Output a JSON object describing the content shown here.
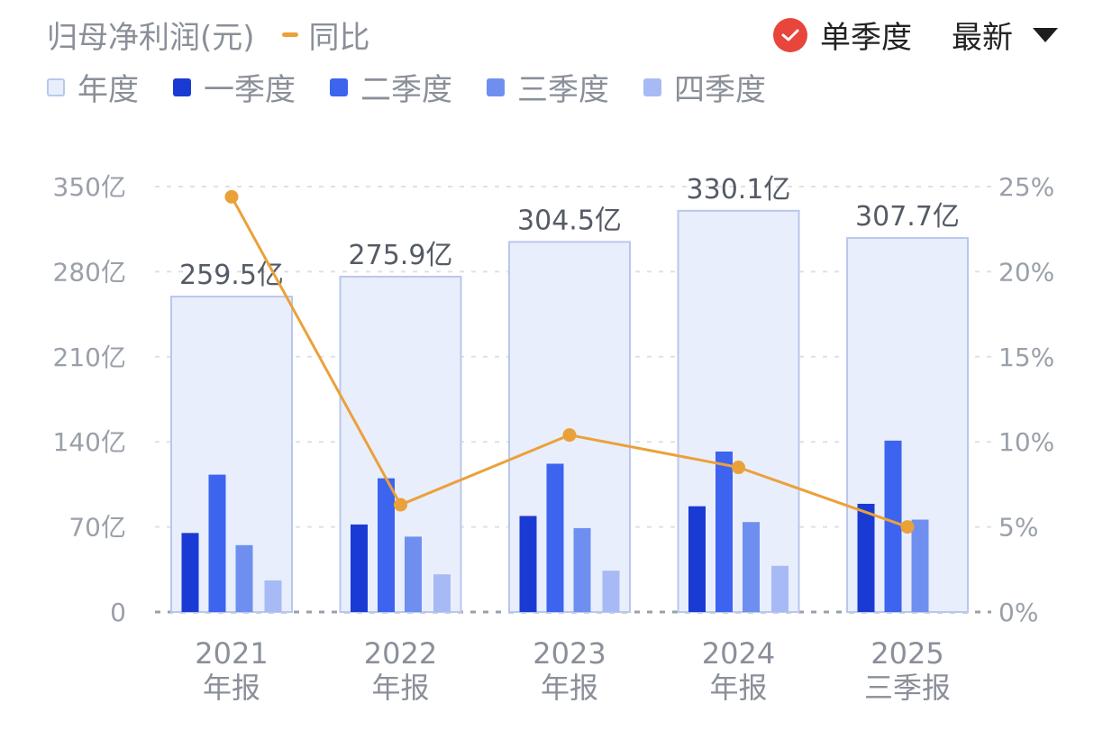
{
  "header": {
    "title": "归母净利润(元)",
    "line_legend_label": "同比",
    "toggle_label": "单季度",
    "period_label": "最新"
  },
  "colors": {
    "annual_fill": "#e9eefc",
    "annual_stroke": "#b9c7ef",
    "q1": "#1a3bd3",
    "q2": "#3d64ee",
    "q3": "#6f8ff0",
    "q4": "#a7baf6",
    "line": "#eba13a",
    "check": "#e8453c"
  },
  "chart_data": {
    "type": "bar",
    "categories": [
      [
        "2021",
        "年报"
      ],
      [
        "2022",
        "年报"
      ],
      [
        "2023",
        "年报"
      ],
      [
        "2024",
        "年报"
      ],
      [
        "2025",
        "三季报"
      ]
    ],
    "legend": [
      "年度",
      "一季度",
      "二季度",
      "三季度",
      "四季度"
    ],
    "series": [
      {
        "name": "年度",
        "values": [
          259.5,
          275.9,
          304.5,
          330.1,
          307.7
        ],
        "value_labels": [
          "259.5亿",
          "275.9亿",
          "304.5亿",
          "330.1亿",
          "307.7亿"
        ]
      },
      {
        "name": "一季度",
        "values": [
          65,
          72,
          79,
          87,
          89
        ]
      },
      {
        "name": "二季度",
        "values": [
          113,
          110,
          122,
          132,
          141
        ]
      },
      {
        "name": "三季度",
        "values": [
          55,
          62,
          69,
          74,
          76
        ]
      },
      {
        "name": "四季度",
        "values": [
          26,
          31,
          34,
          38,
          null
        ]
      }
    ],
    "line_series": {
      "name": "同比",
      "values": [
        24.4,
        6.3,
        10.4,
        8.5,
        5.0
      ]
    },
    "y_left": {
      "min": 0,
      "max": 350,
      "ticks": [
        0,
        70,
        140,
        210,
        280,
        350
      ],
      "tick_labels": [
        "0",
        "70亿",
        "140亿",
        "210亿",
        "280亿",
        "350亿"
      ]
    },
    "y_right": {
      "min": 0,
      "max": 25,
      "ticks": [
        0,
        5,
        10,
        15,
        20,
        25
      ],
      "tick_labels": [
        "0%",
        "5%",
        "10%",
        "15%",
        "20%",
        "25%"
      ]
    },
    "grid": true
  }
}
